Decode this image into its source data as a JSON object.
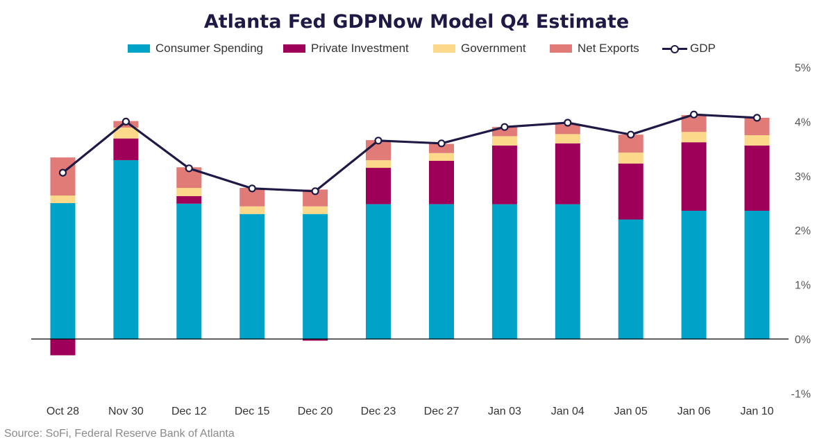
{
  "title": "Atlanta Fed GDPNow Model Q4 Estimate",
  "source": "Source: SoFi, Federal Reserve Bank of Atlanta",
  "colors": {
    "consumer": "#00a3c7",
    "investment": "#9e0059",
    "government": "#fcd98a",
    "net_exports": "#e07b78",
    "gdp": "#1e1a45"
  },
  "legend": [
    {
      "key": "consumer",
      "label": "Consumer Spending"
    },
    {
      "key": "investment",
      "label": "Private Investment"
    },
    {
      "key": "government",
      "label": "Government"
    },
    {
      "key": "net_exports",
      "label": "Net Exports"
    },
    {
      "key": "gdp",
      "label": "GDP"
    }
  ],
  "chart_data": {
    "type": "bar",
    "stacked": true,
    "title": "Atlanta Fed GDPNow Model Q4 Estimate",
    "categories": [
      "Oct 28",
      "Nov 30",
      "Dec 12",
      "Dec 15",
      "Dec 20",
      "Dec 23",
      "Dec 27",
      "Jan 03",
      "Jan 04",
      "Jan 05",
      "Jan 06",
      "Jan 10"
    ],
    "series": [
      {
        "name": "Consumer Spending",
        "key": "consumer",
        "values": [
          2.5,
          3.29,
          2.49,
          2.3,
          2.3,
          2.48,
          2.48,
          2.48,
          2.48,
          2.2,
          2.36,
          2.36
        ]
      },
      {
        "name": "Private Investment",
        "key": "investment",
        "values": [
          -0.3,
          0.4,
          0.14,
          0.0,
          -0.03,
          0.67,
          0.8,
          1.08,
          1.12,
          1.03,
          1.26,
          1.2
        ]
      },
      {
        "name": "Government",
        "key": "government",
        "values": [
          0.14,
          0.2,
          0.15,
          0.14,
          0.14,
          0.14,
          0.14,
          0.17,
          0.17,
          0.2,
          0.19,
          0.19
        ]
      },
      {
        "name": "Net Exports",
        "key": "net_exports",
        "values": [
          0.7,
          0.12,
          0.38,
          0.34,
          0.31,
          0.37,
          0.17,
          0.17,
          0.18,
          0.33,
          0.31,
          0.32
        ]
      }
    ],
    "line": {
      "name": "GDP",
      "key": "gdp",
      "values": [
        3.06,
        4.0,
        3.14,
        2.77,
        2.72,
        3.65,
        3.6,
        3.9,
        3.98,
        3.76,
        4.13,
        4.07
      ]
    },
    "ylim": [
      -1,
      5
    ],
    "yticks": [
      -1,
      0,
      1,
      2,
      3,
      4,
      5
    ],
    "ytick_labels": [
      "-1%",
      "0%",
      "1%",
      "2%",
      "3%",
      "4%",
      "5%"
    ],
    "y_axis_side": "right",
    "grid": false,
    "legend_position": "top"
  }
}
